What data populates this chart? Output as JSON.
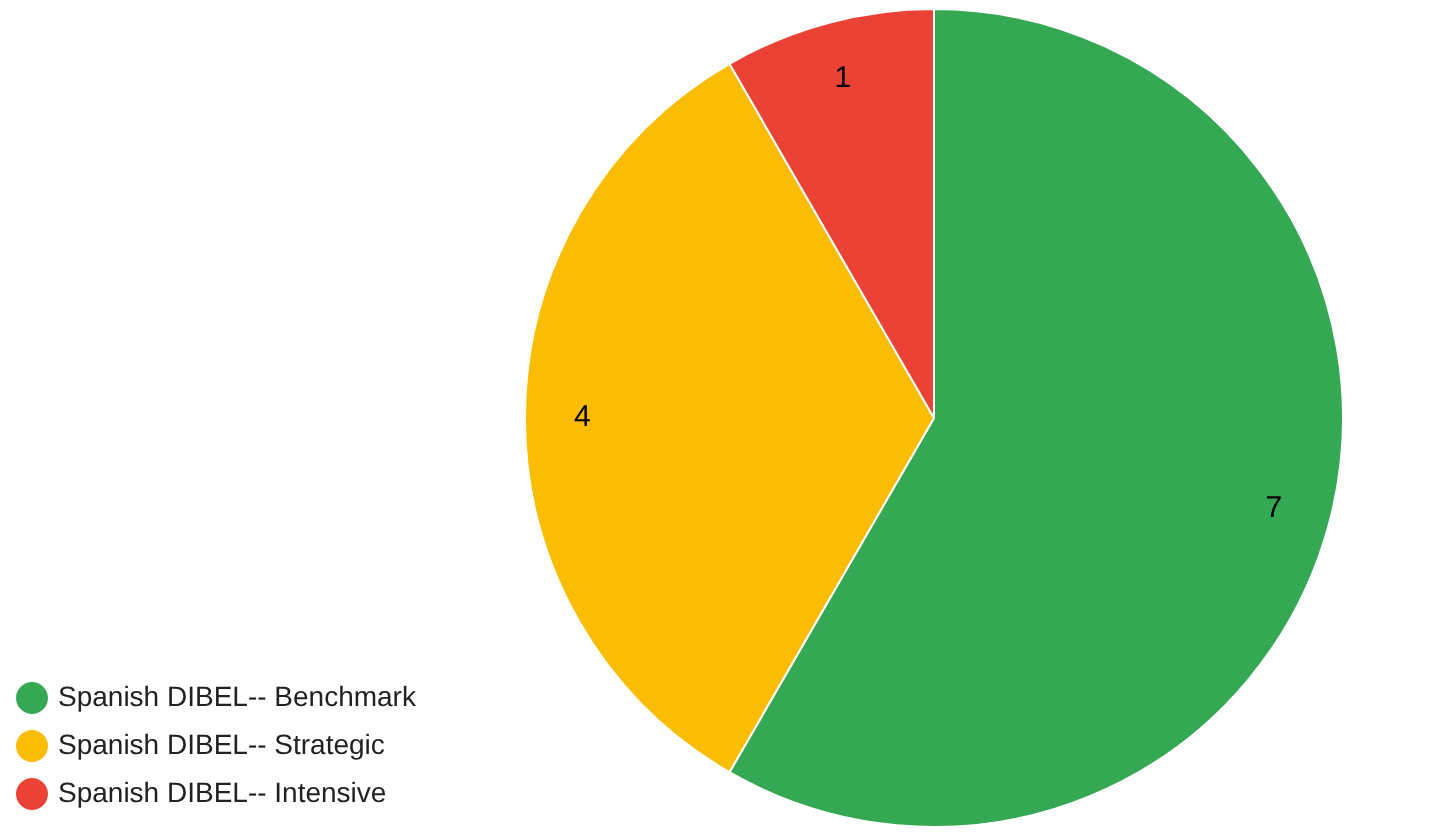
{
  "chart_data": {
    "type": "pie",
    "categories": [
      "Spanish DIBEL-- Benchmark",
      "Spanish DIBEL-- Strategic",
      "Spanish DIBEL-- Intensive"
    ],
    "values": [
      7,
      4,
      1
    ],
    "colors": [
      "#34a853",
      "#fbbc04",
      "#ea4335"
    ],
    "legend": "bottom left",
    "data_labels": true
  }
}
